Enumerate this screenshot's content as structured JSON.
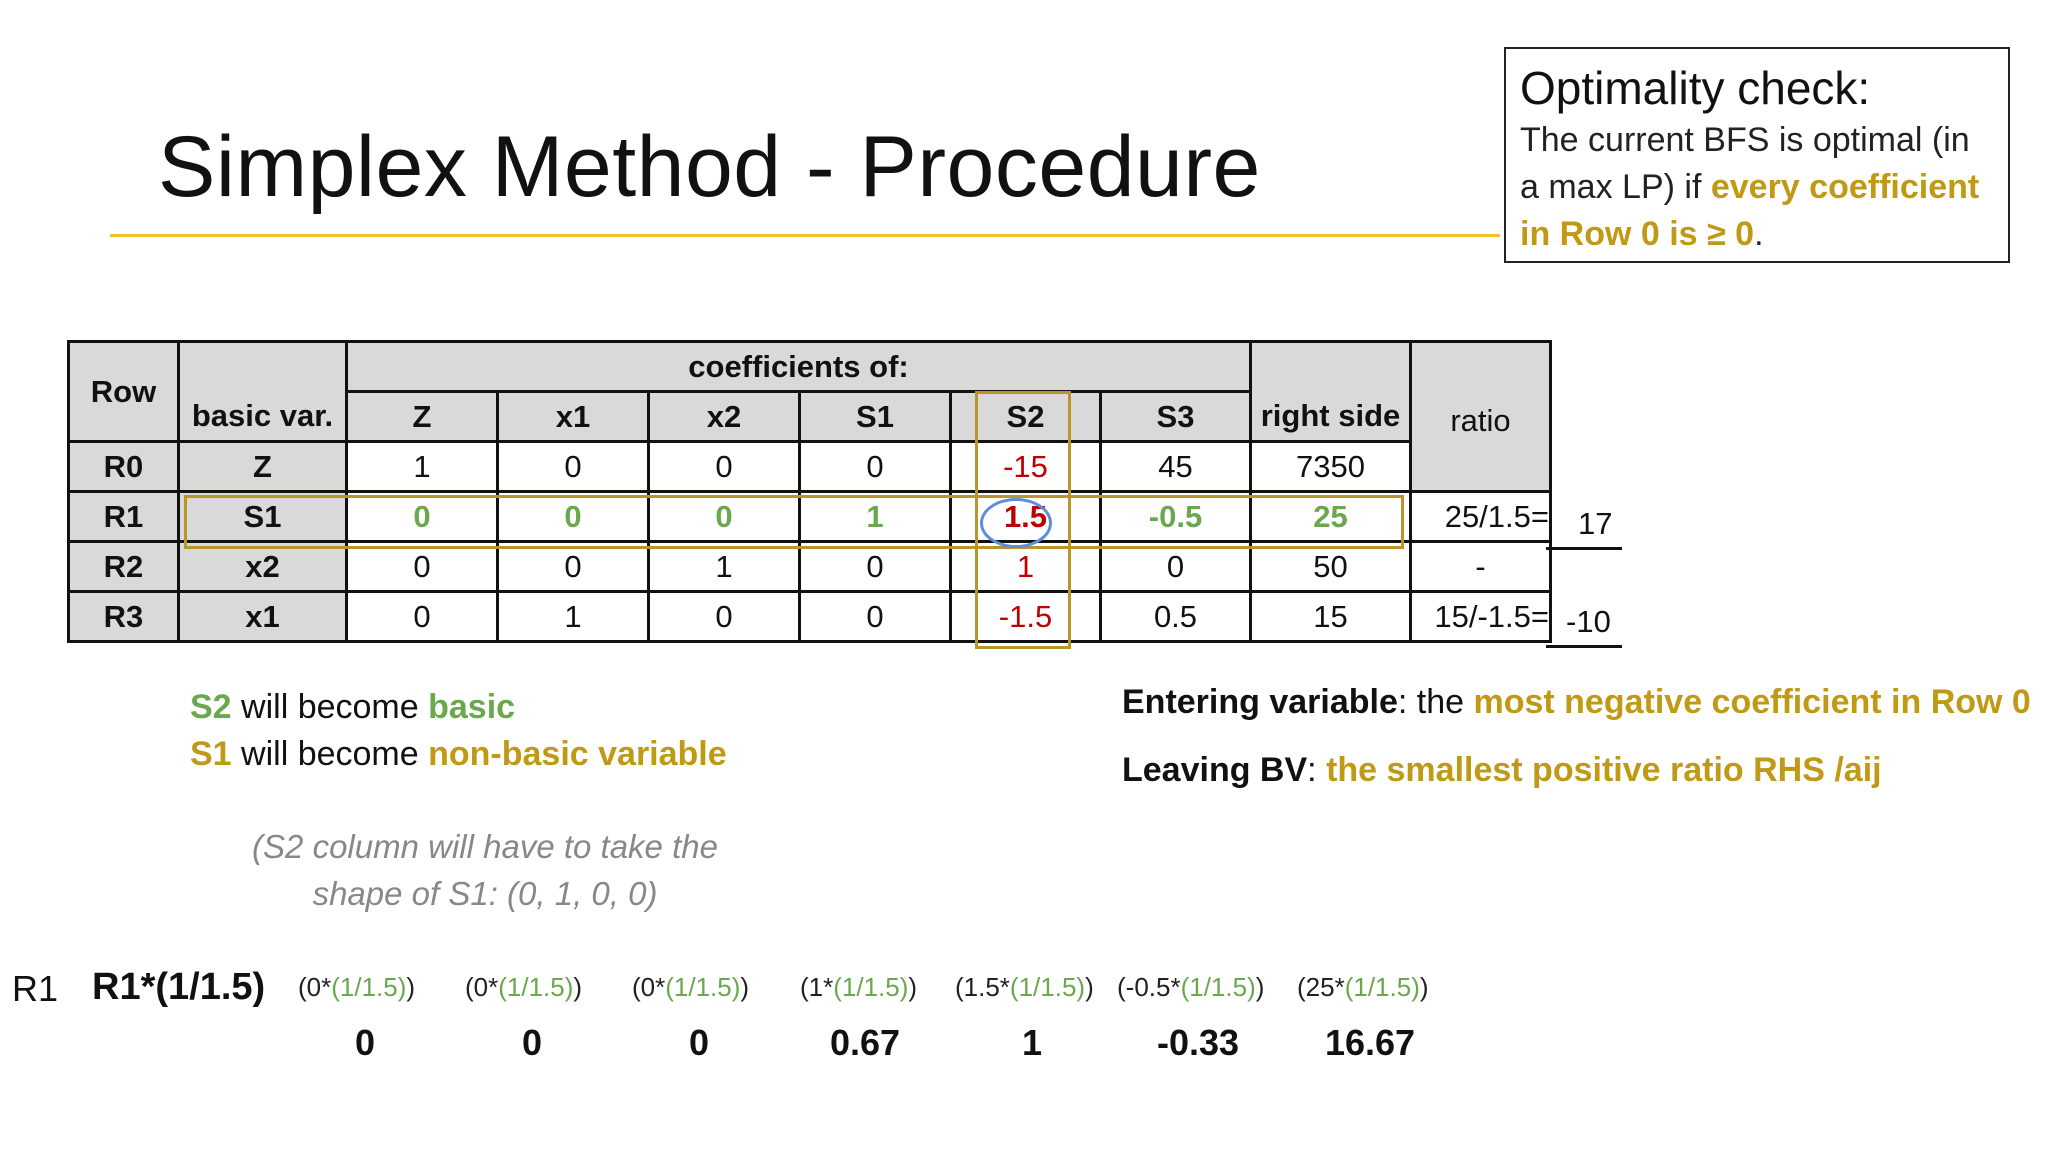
{
  "slide": {
    "title": "Simplex Method - Procedure",
    "note": {
      "heading": "Optimality check:",
      "text_before": "The current BFS is optimal (in a max LP) if ",
      "highlight": "every coefficient in Row 0 is ≥ 0",
      "text_after": "."
    }
  },
  "table": {
    "headers": {
      "row": "Row",
      "basic": "basic var.",
      "coefficients": "coefficients of:",
      "columns": [
        "Z",
        "x1",
        "x2",
        "S1",
        "S2",
        "S3"
      ],
      "rhs": "right side",
      "ratio": "ratio"
    },
    "rows": [
      {
        "row": "R0",
        "basic": "Z",
        "cells": [
          "1",
          "0",
          "0",
          "0",
          "-15",
          "45"
        ],
        "rhs": "7350",
        "ratio": "",
        "ratio_value": ""
      },
      {
        "row": "R1",
        "basic": "S1",
        "cells": [
          "0",
          "0",
          "0",
          "1",
          "1.5",
          "-0.5"
        ],
        "rhs": "25",
        "ratio": "25/1.5=",
        "ratio_value": "17"
      },
      {
        "row": "R2",
        "basic": "x2",
        "cells": [
          "0",
          "0",
          "1",
          "0",
          "1",
          "0"
        ],
        "rhs": "50",
        "ratio": "-",
        "ratio_value": ""
      },
      {
        "row": "R3",
        "basic": "x1",
        "cells": [
          "0",
          "1",
          "0",
          "0",
          "-1.5",
          "0.5"
        ],
        "rhs": "15",
        "ratio": "15/-1.5=",
        "ratio_value": "-10"
      }
    ],
    "colors": {
      "highlight_border": "#b8962a",
      "pivot_circle": "#5b8fd6",
      "header_gray": "#d9d9d9"
    }
  },
  "notes": {
    "become_basic": {
      "var": "S2",
      "mid": " will become ",
      "word": "basic"
    },
    "become_nonbasic": {
      "var": "S1",
      "mid": " will become ",
      "word": "non-basic variable"
    },
    "entering": {
      "label": "Entering variable",
      "sep": ": the ",
      "rule": "most negative coefficient in Row 0"
    },
    "leaving": {
      "label": "Leaving BV",
      "sep": ": ",
      "rule": "the smallest positive ratio RHS /aij"
    },
    "shape_line1": "(S2 column will have to take the",
    "shape_line2": "shape of S1: (0, 1, 0, 0)"
  },
  "row_op": {
    "label": "R1",
    "formula": "R1*(1/1.5)",
    "factor": "(1/1.5)",
    "terms": [
      {
        "coef": "(0*",
        "close": ")"
      },
      {
        "coef": "(0*",
        "close": ")"
      },
      {
        "coef": "(0*",
        "close": ")"
      },
      {
        "coef": "(1*",
        "close": ")"
      },
      {
        "coef": "(1.5*",
        "close": ")"
      },
      {
        "coef": "(-0.5*",
        "close": ")"
      },
      {
        "coef": "(25*",
        "close": ")"
      }
    ],
    "results": [
      "0",
      "0",
      "0",
      "0.67",
      "1",
      "-0.33",
      "16.67"
    ]
  }
}
